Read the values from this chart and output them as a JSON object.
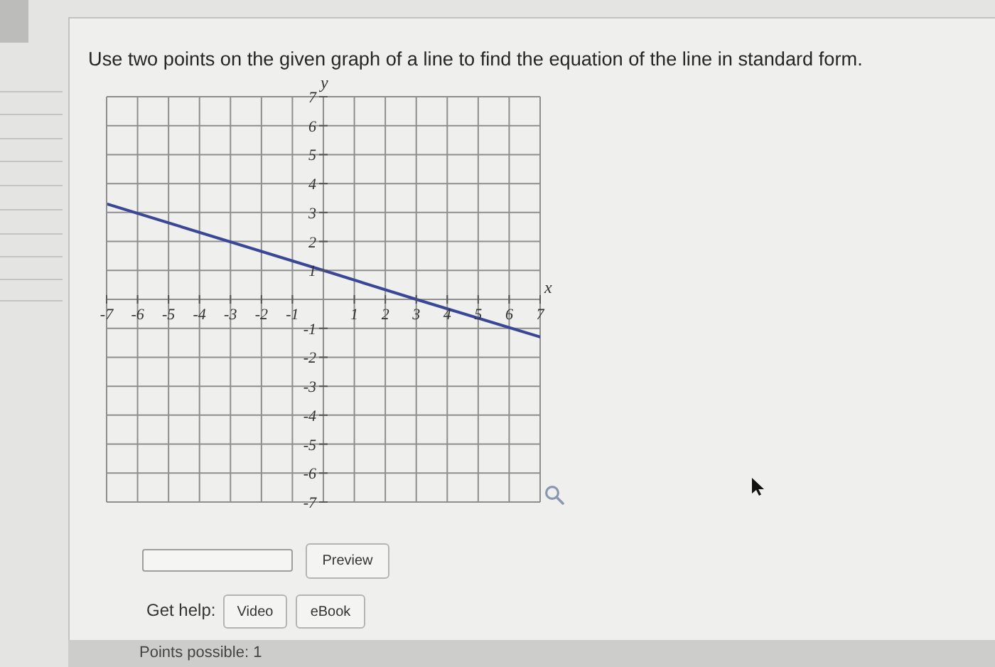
{
  "chart_data": {
    "type": "line",
    "title": "Use two points on the given graph of a line to find the equation of the line in standard form.",
    "xlabel": "x",
    "ylabel": "y",
    "x": [
      -7,
      0,
      3,
      7
    ],
    "series": [
      {
        "color": "#3a4796",
        "values": [
          3.3,
          1,
          0,
          -1.3
        ]
      }
    ],
    "xlim": [
      -7,
      7
    ],
    "ylim": [
      -7,
      7
    ],
    "xticks": [
      -7,
      -6,
      -5,
      -4,
      -3,
      -2,
      -1,
      {
        "value": 0,
        "label": null
      },
      1,
      2,
      3,
      4,
      5,
      6,
      7
    ],
    "yticks": [
      -7,
      -6,
      -5,
      -4,
      -3,
      -2,
      -1,
      {
        "value": 0,
        "label": null
      },
      1,
      2,
      3,
      4,
      5,
      6,
      7
    ],
    "grid": true,
    "annotations": [
      "Preview",
      "Get help:",
      "Video",
      "eBook",
      "Points possible: 1"
    ]
  }
}
